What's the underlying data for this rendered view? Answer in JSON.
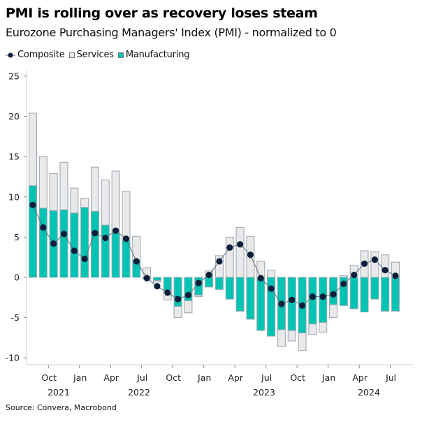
{
  "title": "PMI is rolling over as recovery loses steam",
  "subtitle": "Eurozone Purchasing Managers' Index (PMI) - normalized to 0",
  "source": "Source: Convera, Macrobond",
  "colors": {
    "manufacturing": "#00c4b3",
    "services": "#e9e9ea",
    "bar_border": "#9aa6b2",
    "composite": "#0b1f3a",
    "line": "#5d6b78"
  },
  "chart_data": {
    "type": "bar",
    "stacked": true,
    "title": "PMI is rolling over as recovery loses steam",
    "subtitle": "Eurozone Purchasing Managers' Index (PMI) - normalized to 0",
    "legend_position": "top-left",
    "grid": false,
    "ylim": [
      -10,
      25
    ],
    "yticks": [
      25,
      20,
      15,
      10,
      5,
      0,
      -5,
      -10
    ],
    "categories": [
      "2021-08",
      "2021-09",
      "2021-10",
      "2021-11",
      "2021-12",
      "2022-01",
      "2022-02",
      "2022-03",
      "2022-04",
      "2022-05",
      "2022-06",
      "2022-07",
      "2022-08",
      "2022-09",
      "2022-10",
      "2022-11",
      "2022-12",
      "2023-01",
      "2023-02",
      "2023-03",
      "2023-04",
      "2023-05",
      "2023-06",
      "2023-07",
      "2023-08",
      "2023-09",
      "2023-10",
      "2023-11",
      "2023-12",
      "2024-01",
      "2024-02",
      "2024-03",
      "2024-04",
      "2024-05",
      "2024-06",
      "2024-07"
    ],
    "xtick_labels": [
      {
        "month": "2021-10",
        "label": "Oct"
      },
      {
        "month": "2022-01",
        "label": "Jan"
      },
      {
        "month": "2022-04",
        "label": "Apr"
      },
      {
        "month": "2022-07",
        "label": "Jul"
      },
      {
        "month": "2022-10",
        "label": "Oct"
      },
      {
        "month": "2023-01",
        "label": "Jan"
      },
      {
        "month": "2023-04",
        "label": "Apr"
      },
      {
        "month": "2023-07",
        "label": "Jul"
      },
      {
        "month": "2023-10",
        "label": "Oct"
      },
      {
        "month": "2024-01",
        "label": "Jan"
      },
      {
        "month": "2024-04",
        "label": "Apr"
      },
      {
        "month": "2024-07",
        "label": "Jul"
      }
    ],
    "year_labels": [
      "2021",
      "2022",
      "2023",
      "2024"
    ],
    "series": [
      {
        "name": "Composite",
        "type": "line",
        "values": [
          9.0,
          6.2,
          4.2,
          5.4,
          3.3,
          2.3,
          5.5,
          4.9,
          5.8,
          4.8,
          2.0,
          -0.1,
          -1.1,
          -1.9,
          -2.7,
          -2.2,
          -0.7,
          0.3,
          2.0,
          3.7,
          4.1,
          2.8,
          -0.1,
          -1.4,
          -3.3,
          -2.8,
          -3.5,
          -2.4,
          -2.4,
          -2.1,
          -0.8,
          0.3,
          1.7,
          2.2,
          0.9,
          0.2
        ]
      },
      {
        "name": "Services",
        "type": "bar",
        "values": [
          9.0,
          6.4,
          4.6,
          5.9,
          3.1,
          1.1,
          5.5,
          5.6,
          7.7,
          6.1,
          3.0,
          1.2,
          -0.2,
          -1.2,
          -1.4,
          -1.5,
          -0.2,
          0.8,
          2.7,
          5.0,
          6.2,
          5.1,
          2.0,
          0.9,
          -2.1,
          -1.3,
          -2.2,
          -1.3,
          -1.2,
          -1.6,
          0.2,
          1.5,
          3.3,
          3.2,
          2.8,
          1.9
        ]
      },
      {
        "name": "Manufacturing",
        "type": "bar",
        "values": [
          11.4,
          8.6,
          8.3,
          8.4,
          8.0,
          8.7,
          8.2,
          6.5,
          5.5,
          4.6,
          2.1,
          -0.2,
          -0.4,
          -1.6,
          -3.6,
          -2.9,
          -2.2,
          -1.2,
          -1.5,
          -2.7,
          -4.2,
          -5.2,
          -6.6,
          -7.3,
          -6.5,
          -6.6,
          -6.9,
          -5.8,
          -5.6,
          -3.4,
          -3.5,
          -3.9,
          -4.3,
          -2.7,
          -4.2,
          -4.2
        ]
      }
    ]
  }
}
